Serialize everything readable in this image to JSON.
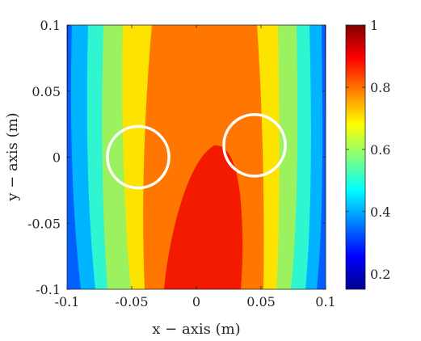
{
  "chart_data": {
    "type": "heatmap",
    "title": "",
    "xlabel": "x − axis (m)",
    "ylabel": "y − axis (m)",
    "xlim": [
      -0.1,
      0.1
    ],
    "ylim": [
      -0.1,
      0.1
    ],
    "xticks": [
      "-0.1",
      "-0.05",
      "0",
      "0.05",
      "0.1"
    ],
    "yticks": [
      "0.1",
      "0.05",
      "0",
      "-0.05",
      "-0.1"
    ],
    "colorbar": {
      "range": [
        0.15,
        1.0
      ],
      "ticks": [
        "1",
        "0.8",
        "0.6",
        "0.4",
        "0.2"
      ],
      "colormap": "jet"
    },
    "contour_levels": [
      {
        "level": 0.2,
        "color": "#0000ad"
      },
      {
        "level": 0.3,
        "color": "#0060ff"
      },
      {
        "level": 0.4,
        "color": "#00b4ff"
      },
      {
        "level": 0.5,
        "color": "#2ff5d0"
      },
      {
        "level": 0.6,
        "color": "#9cf25e"
      },
      {
        "level": 0.7,
        "color": "#fde400"
      },
      {
        "level": 0.8,
        "color": "#ff7700"
      },
      {
        "level": 0.9,
        "color": "#f31a00"
      }
    ],
    "markers": [
      {
        "type": "circle",
        "x": -0.045,
        "y": 0.0,
        "radius": 0.0085,
        "color": "#ffffff"
      },
      {
        "type": "circle",
        "x": 0.045,
        "y": 0.009,
        "radius": 0.0085,
        "color": "#ffffff"
      }
    ]
  }
}
